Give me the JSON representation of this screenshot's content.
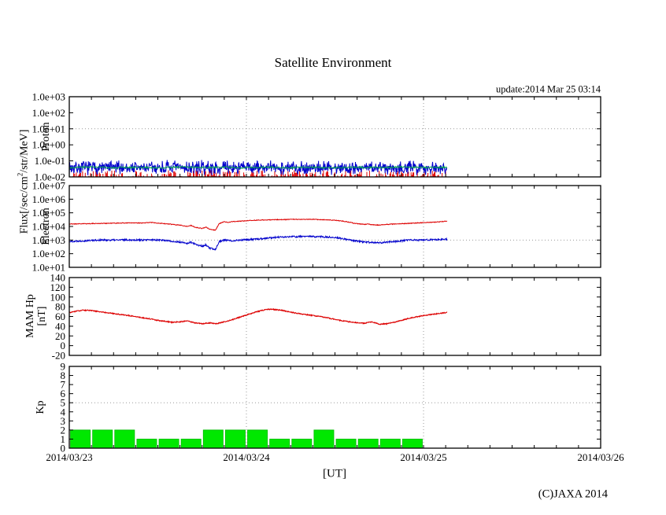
{
  "page": {
    "title": "Satellite Environment",
    "update_text": "update:2014 Mar 25 03:14",
    "xaxis_label": "[UT]",
    "copyright": "(C)JAXA 2014",
    "flux_axis_label": {
      "pre": "Flux[/sec/cm",
      "sup": "2",
      "post": "/str/MeV]"
    },
    "panel_labels": {
      "proton": "Proton",
      "electron": "Electron",
      "mam_line1": "MAM Hp",
      "mam_line2": "[nT]",
      "kp": "Kp"
    }
  },
  "chart_data": {
    "x_axis": {
      "unit": "UT hours from 2014/03/23 00:00",
      "xlim_h": [
        0,
        72
      ],
      "xtick_step_h": 3,
      "grid_hours": [
        24,
        48
      ],
      "data_end_h": 51.2,
      "xtick_labels": [
        {
          "h": 0,
          "label": "2014/03/23"
        },
        {
          "h": 24,
          "label": "2014/03/24"
        },
        {
          "h": 48,
          "label": "2014/03/25"
        },
        {
          "h": 72,
          "label": "2014/03/26"
        }
      ]
    },
    "panels": [
      {
        "id": "proton",
        "type": "line",
        "ylabel": "Proton",
        "yscale": "log",
        "ylim": [
          0.01,
          1000
        ],
        "value_space": "log10",
        "vmin": -2,
        "vmax": 3,
        "hline_v": 1,
        "yticks": [
          {
            "v": 3,
            "label": "1.0e+03"
          },
          {
            "v": 2,
            "label": "1.0e+02"
          },
          {
            "v": 1,
            "label": "1.0e+01"
          },
          {
            "v": 0,
            "label": "1.0e+00"
          },
          {
            "v": -1,
            "label": "1.0e-01"
          },
          {
            "v": -2,
            "label": "1.0e-02"
          }
        ],
        "series": [
          {
            "name": "proton-high-energy-red",
            "color": "#dd0000",
            "render": "spikes",
            "base_v": -2.0,
            "max_amp_v": 0.42,
            "density": 0.55,
            "step_h": 0.12,
            "seed": 11,
            "width": 1
          },
          {
            "name": "proton-low-energy-blue",
            "color": "#0000cc",
            "render": "noise_band",
            "center_v": -1.42,
            "spread_v": 0.5,
            "clamp_v": [
              -1.97,
              -0.93
            ],
            "step_h": 0.055,
            "seed": 7,
            "width": 1
          },
          {
            "name": "proton-mid-energy-green",
            "color": "#00a550",
            "render": "noisy_line",
            "noise": 0.05,
            "step_h": 0.08,
            "seed": 3,
            "width": 1,
            "keypoints": [
              [
                0,
                -1.42
              ],
              [
                3,
                -1.38
              ],
              [
                6,
                -1.44
              ],
              [
                9,
                -1.4
              ],
              [
                12,
                -1.43
              ],
              [
                15,
                -1.38
              ],
              [
                18,
                -1.42
              ],
              [
                21,
                -1.4
              ],
              [
                24,
                -1.43
              ],
              [
                27,
                -1.39
              ],
              [
                30,
                -1.42
              ],
              [
                33,
                -1.4
              ],
              [
                36,
                -1.43
              ],
              [
                39,
                -1.4
              ],
              [
                42,
                -1.42
              ],
              [
                45,
                -1.39
              ],
              [
                48,
                -1.41
              ],
              [
                51.2,
                -1.4
              ]
            ]
          }
        ]
      },
      {
        "id": "electron",
        "type": "line",
        "ylabel": "Electron",
        "yscale": "log",
        "ylim": [
          10,
          10000000
        ],
        "value_space": "log10",
        "vmin": 1,
        "vmax": 7,
        "hline_v": 3,
        "yticks": [
          {
            "v": 7,
            "label": "1.0e+07"
          },
          {
            "v": 6,
            "label": "1.0e+06"
          },
          {
            "v": 5,
            "label": "1.0e+05"
          },
          {
            "v": 4,
            "label": "1.0e+04"
          },
          {
            "v": 3,
            "label": "1.0e+03"
          },
          {
            "v": 2,
            "label": "1.0e+02"
          },
          {
            "v": 1,
            "label": "1.0e+01"
          }
        ],
        "series": [
          {
            "name": "electron-low-energy-red",
            "color": "#dd0000",
            "render": "noisy_line",
            "noise": 0.025,
            "step_h": 0.05,
            "seed": 21,
            "width": 1,
            "keypoints": [
              [
                0,
                4.18
              ],
              [
                2,
                4.2
              ],
              [
                4,
                4.22
              ],
              [
                6,
                4.24
              ],
              [
                8,
                4.26
              ],
              [
                10,
                4.25
              ],
              [
                11,
                4.3
              ],
              [
                12,
                4.25
              ],
              [
                13,
                4.2
              ],
              [
                14,
                4.15
              ],
              [
                15,
                4.1
              ],
              [
                16,
                4.0
              ],
              [
                16.5,
                4.08
              ],
              [
                17,
                3.95
              ],
              [
                18,
                3.85
              ],
              [
                18.5,
                3.95
              ],
              [
                19,
                3.8
              ],
              [
                19.8,
                3.72
              ],
              [
                20.3,
                4.2
              ],
              [
                21,
                4.35
              ],
              [
                21.5,
                4.3
              ],
              [
                22,
                4.35
              ],
              [
                23,
                4.38
              ],
              [
                24,
                4.42
              ],
              [
                25,
                4.45
              ],
              [
                26,
                4.47
              ],
              [
                27,
                4.48
              ],
              [
                28,
                4.5
              ],
              [
                29,
                4.5
              ],
              [
                30,
                4.52
              ],
              [
                31,
                4.52
              ],
              [
                32,
                4.53
              ],
              [
                33,
                4.52
              ],
              [
                34,
                4.5
              ],
              [
                35,
                4.48
              ],
              [
                36,
                4.45
              ],
              [
                37,
                4.4
              ],
              [
                38,
                4.3
              ],
              [
                39,
                4.2
              ],
              [
                40,
                4.15
              ],
              [
                40.5,
                4.18
              ],
              [
                41,
                4.12
              ],
              [
                42,
                4.1
              ],
              [
                43,
                4.15
              ],
              [
                44,
                4.18
              ],
              [
                45,
                4.2
              ],
              [
                46,
                4.22
              ],
              [
                47,
                4.25
              ],
              [
                48,
                4.28
              ],
              [
                49,
                4.3
              ],
              [
                50,
                4.33
              ],
              [
                51.2,
                4.4
              ]
            ]
          },
          {
            "name": "electron-high-energy-blue",
            "color": "#0000cc",
            "render": "noisy_line",
            "noise": 0.06,
            "step_h": 0.05,
            "seed": 22,
            "width": 1,
            "keypoints": [
              [
                0,
                2.9
              ],
              [
                2,
                2.95
              ],
              [
                4,
                3.0
              ],
              [
                6,
                3.0
              ],
              [
                8,
                3.02
              ],
              [
                10,
                3.0
              ],
              [
                12,
                3.02
              ],
              [
                13,
                2.98
              ],
              [
                14,
                2.9
              ],
              [
                15,
                2.85
              ],
              [
                16,
                2.75
              ],
              [
                16.5,
                2.85
              ],
              [
                17,
                2.7
              ],
              [
                18,
                2.55
              ],
              [
                18.5,
                2.65
              ],
              [
                19,
                2.4
              ],
              [
                19.8,
                2.3
              ],
              [
                20.3,
                2.9
              ],
              [
                21,
                3.0
              ],
              [
                22,
                2.95
              ],
              [
                23,
                3.0
              ],
              [
                24,
                3.02
              ],
              [
                25,
                3.05
              ],
              [
                26,
                3.1
              ],
              [
                27,
                3.15
              ],
              [
                28,
                3.2
              ],
              [
                29,
                3.22
              ],
              [
                30,
                3.25
              ],
              [
                31,
                3.25
              ],
              [
                32,
                3.27
              ],
              [
                33,
                3.25
              ],
              [
                34,
                3.25
              ],
              [
                35,
                3.22
              ],
              [
                36,
                3.2
              ],
              [
                37,
                3.1
              ],
              [
                38,
                3.0
              ],
              [
                39,
                2.92
              ],
              [
                40,
                2.85
              ],
              [
                41,
                2.82
              ],
              [
                42,
                2.8
              ],
              [
                43,
                2.85
              ],
              [
                44,
                2.9
              ],
              [
                45,
                2.95
              ],
              [
                46,
                3.0
              ],
              [
                47,
                3.0
              ],
              [
                48,
                3.0
              ],
              [
                49,
                3.02
              ],
              [
                50,
                3.05
              ],
              [
                51.2,
                3.08
              ]
            ]
          }
        ]
      },
      {
        "id": "mam",
        "type": "line",
        "ylabel": "MAM Hp [nT]",
        "yscale": "linear",
        "ylim": [
          -20,
          140
        ],
        "vmin": -20,
        "vmax": 140,
        "yticks": [
          {
            "v": 140,
            "label": "140"
          },
          {
            "v": 120,
            "label": "120"
          },
          {
            "v": 100,
            "label": "100"
          },
          {
            "v": 80,
            "label": "80"
          },
          {
            "v": 60,
            "label": "60"
          },
          {
            "v": 40,
            "label": "40"
          },
          {
            "v": 20,
            "label": "20"
          },
          {
            "v": 0,
            "label": "0"
          },
          {
            "v": -20,
            "label": "-20"
          }
        ],
        "series": [
          {
            "name": "mam-hp-red",
            "color": "#dd0000",
            "render": "noisy_line",
            "noise": 1.0,
            "step_h": 0.05,
            "seed": 31,
            "width": 1.1,
            "keypoints": [
              [
                0,
                68
              ],
              [
                1,
                71
              ],
              [
                2,
                73
              ],
              [
                3,
                72
              ],
              [
                4,
                70
              ],
              [
                5,
                68
              ],
              [
                6,
                66
              ],
              [
                7,
                64
              ],
              [
                8,
                62
              ],
              [
                9,
                60
              ],
              [
                10,
                57
              ],
              [
                11,
                55
              ],
              [
                12,
                52
              ],
              [
                13,
                50
              ],
              [
                14,
                48
              ],
              [
                15,
                49
              ],
              [
                16,
                51
              ],
              [
                17,
                47
              ],
              [
                18,
                45
              ],
              [
                19,
                47
              ],
              [
                20,
                45
              ],
              [
                21,
                49
              ],
              [
                22,
                53
              ],
              [
                23,
                58
              ],
              [
                24,
                63
              ],
              [
                25,
                68
              ],
              [
                26,
                72
              ],
              [
                27,
                75
              ],
              [
                28,
                74
              ],
              [
                29,
                72
              ],
              [
                30,
                69
              ],
              [
                31,
                66
              ],
              [
                32,
                64
              ],
              [
                33,
                62
              ],
              [
                34,
                60
              ],
              [
                35,
                57
              ],
              [
                36,
                54
              ],
              [
                37,
                51
              ],
              [
                38,
                49
              ],
              [
                39,
                47
              ],
              [
                40,
                46
              ],
              [
                41,
                49
              ],
              [
                42,
                44
              ],
              [
                43,
                45
              ],
              [
                44,
                48
              ],
              [
                45,
                52
              ],
              [
                46,
                56
              ],
              [
                47,
                59
              ],
              [
                48,
                62
              ],
              [
                49,
                64
              ],
              [
                50,
                66
              ],
              [
                51.2,
                68
              ]
            ]
          }
        ]
      },
      {
        "id": "kp",
        "type": "bar",
        "ylabel": "Kp",
        "yscale": "linear",
        "ylim": [
          0,
          9
        ],
        "vmin": 0,
        "vmax": 9,
        "hline_v": 5,
        "yticks": [
          {
            "v": 9,
            "label": "9"
          },
          {
            "v": 8,
            "label": "8"
          },
          {
            "v": 7,
            "label": "7"
          },
          {
            "v": 6,
            "label": "6"
          },
          {
            "v": 5,
            "label": "5"
          },
          {
            "v": 4,
            "label": "4"
          },
          {
            "v": 3,
            "label": "3"
          },
          {
            "v": 2,
            "label": "2"
          },
          {
            "v": 1,
            "label": "1"
          },
          {
            "v": 0,
            "label": "0"
          }
        ],
        "series": [
          {
            "name": "kp-bars-green",
            "color": "#00e800",
            "edge": "#00bb00",
            "render": "bars",
            "bar_width_h": 3,
            "start_h": 0,
            "values": [
              2,
              2,
              2,
              1,
              1,
              1,
              2,
              2,
              2,
              1,
              1,
              2,
              1,
              1,
              1,
              1
            ]
          }
        ]
      }
    ]
  }
}
